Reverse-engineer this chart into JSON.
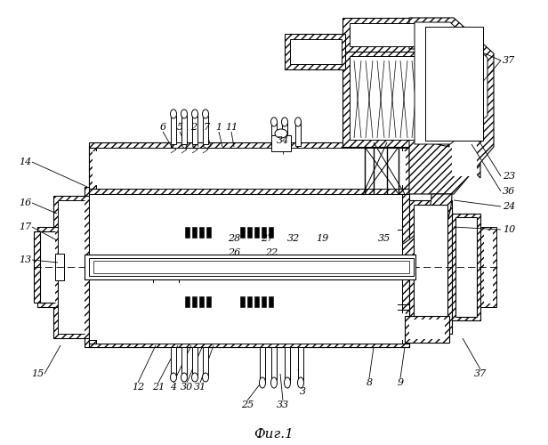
{
  "title": "Фиг.1",
  "bg": "#ffffff",
  "lc": "#000000",
  "labels_top": [
    [
      "6",
      183,
      148
    ],
    [
      "5",
      205,
      148
    ],
    [
      "2",
      220,
      148
    ],
    [
      "7",
      233,
      148
    ],
    [
      "1",
      247,
      148
    ],
    [
      "11",
      261,
      148
    ],
    [
      "34",
      318,
      162
    ]
  ],
  "labels_right": [
    [
      "23",
      572,
      198
    ],
    [
      "36",
      572,
      215
    ],
    [
      "24",
      572,
      232
    ],
    [
      "10",
      572,
      258
    ],
    [
      "37",
      572,
      68
    ]
  ],
  "labels_left": [
    [
      "14",
      28,
      185
    ],
    [
      "16",
      28,
      228
    ],
    [
      "17",
      28,
      255
    ],
    [
      "13",
      28,
      292
    ]
  ],
  "labels_mid": [
    [
      "28",
      262,
      270
    ],
    [
      "27",
      298,
      270
    ],
    [
      "32",
      328,
      270
    ],
    [
      "19",
      360,
      270
    ],
    [
      "35",
      430,
      270
    ],
    [
      "26",
      262,
      284
    ],
    [
      "22",
      305,
      284
    ]
  ],
  "labels_bot": [
    [
      "15",
      42,
      418
    ],
    [
      "12",
      155,
      433
    ],
    [
      "21",
      175,
      433
    ],
    [
      "4",
      192,
      433
    ],
    [
      "30",
      207,
      433
    ],
    [
      "31",
      222,
      433
    ],
    [
      "25",
      275,
      455
    ],
    [
      "33",
      315,
      455
    ],
    [
      "3",
      338,
      442
    ],
    [
      "8",
      415,
      430
    ],
    [
      "9",
      448,
      430
    ],
    [
      "37",
      538,
      418
    ]
  ]
}
